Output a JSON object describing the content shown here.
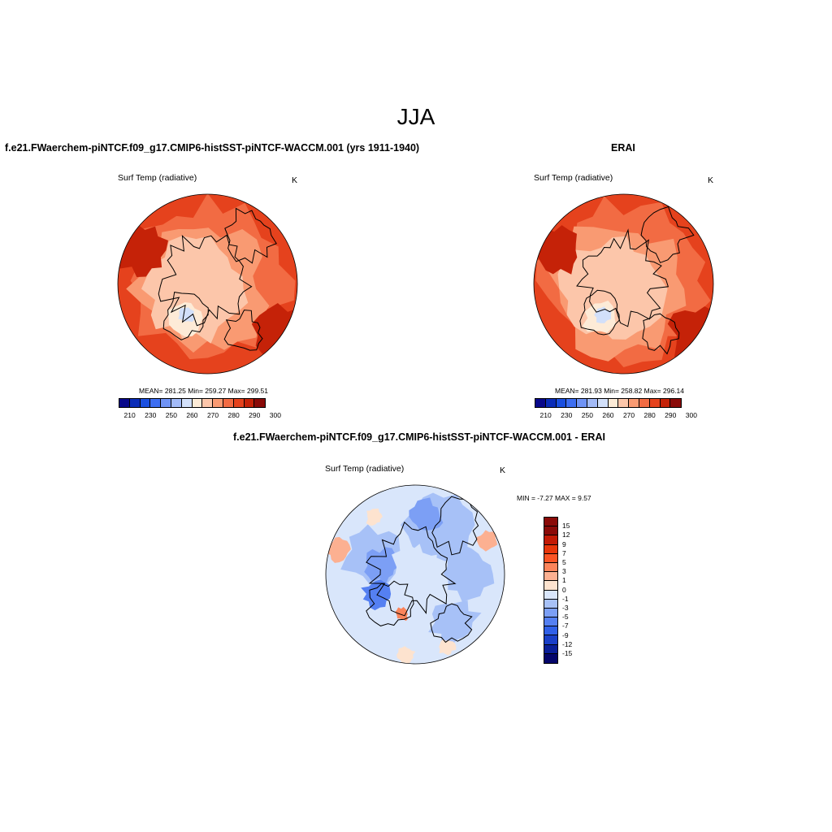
{
  "figure": {
    "season": "JJA"
  },
  "panels": [
    {
      "title": "f.e21.FWaerchem-piNTCF.f09_g17.CMIP6-histSST-piNTCF-WACCM.001 (yrs 1911-1940)",
      "variable": "Surf Temp (radiative)",
      "units": "K",
      "stats": "MEAN= 281.25  Min= 259.27  Max= 299.51",
      "field": "absolute"
    },
    {
      "title": "ERAI",
      "variable": "Surf Temp (radiative)",
      "units": "K",
      "stats": "MEAN= 281.93  Min= 258.82  Max= 296.14",
      "field": "absolute"
    },
    {
      "title": "f.e21.FWaerchem-piNTCF.f09_g17.CMIP6-histSST-piNTCF-WACCM.001 - ERAI",
      "variable": "Surf Temp (radiative)",
      "units": "K",
      "stats": "MIN =  -7.27 MAX =   9.57",
      "field": "difference"
    }
  ],
  "colorbars": {
    "absolute": {
      "colors": [
        "#08088a",
        "#0a2cb8",
        "#1a4fe0",
        "#3d6ef2",
        "#6f93f5",
        "#a2baf7",
        "#d2e0fa",
        "#fdebd7",
        "#fcc6aa",
        "#f99a72",
        "#f26b43",
        "#e5421d",
        "#c52208",
        "#8a0a08"
      ],
      "tick_labels": [
        "210",
        "230",
        "250",
        "260",
        "270",
        "280",
        "290",
        "300"
      ]
    },
    "difference": {
      "colors": [
        "#8a0a08",
        "#c21a05",
        "#e8360a",
        "#fb5424",
        "#fb845a",
        "#fcb091",
        "#fde3cf",
        "#d9e6fb",
        "#a7c1f7",
        "#7c9ff5",
        "#5580f2",
        "#3060e8",
        "#1a3fc8",
        "#0a1f98",
        "#05066b"
      ],
      "tick_labels": [
        "15",
        "12",
        "9",
        "7",
        "5",
        "3",
        "1",
        "0",
        "-1",
        "-3",
        "-5",
        "-7",
        "-9",
        "-12",
        "-15"
      ]
    }
  }
}
